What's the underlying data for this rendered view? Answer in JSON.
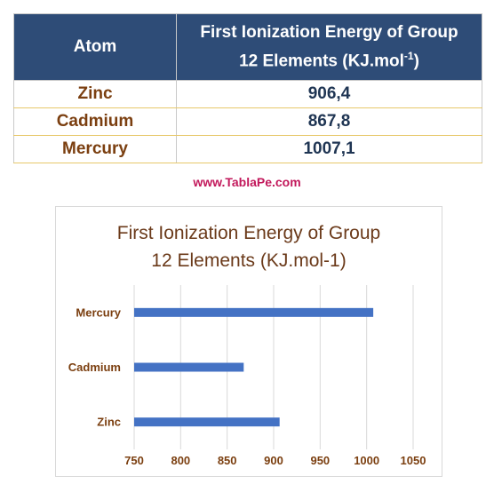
{
  "table": {
    "header_atom": "Atom",
    "header_energy_line1": "First Ionization Energy of Group",
    "header_energy_line2": "12 Elements (KJ.mol",
    "header_energy_sup": "-1",
    "header_energy_close": ")",
    "rows": [
      {
        "atom": "Zinc",
        "value": "906,4"
      },
      {
        "atom": "Cadmium",
        "value": "867,8"
      },
      {
        "atom": "Mercury",
        "value": "1007,1"
      }
    ]
  },
  "watermark": "www.TablaPe.com",
  "colors": {
    "header_bg": "#2e4c77",
    "atom_text": "#7b3f10",
    "bar": "#4472c4",
    "watermark": "#c2185b"
  },
  "chart_data": {
    "type": "bar",
    "orientation": "horizontal",
    "title_line1": "First Ionization Energy of Group",
    "title_line2": "12 Elements (KJ.mol-1)",
    "categories": [
      "Zinc",
      "Cadmium",
      "Mercury"
    ],
    "values": [
      906.4,
      867.8,
      1007.1
    ],
    "xlim": [
      750,
      1050
    ],
    "xticks": [
      "750",
      "800",
      "850",
      "900",
      "950",
      "1000",
      "1050"
    ],
    "grid": true,
    "legend": "none"
  }
}
